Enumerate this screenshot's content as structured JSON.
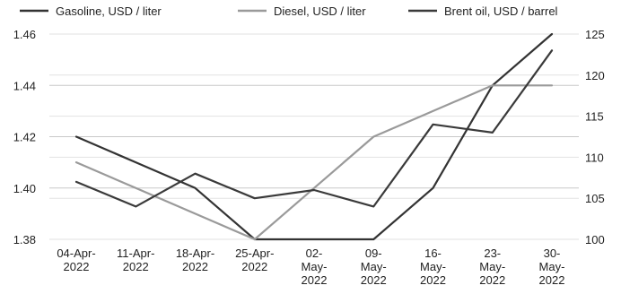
{
  "chart_data": {
    "type": "line",
    "categories": [
      [
        "04-Apr-",
        "2022"
      ],
      [
        "11-Apr-",
        "2022"
      ],
      [
        "18-Apr-",
        "2022"
      ],
      [
        "25-Apr-",
        "2022"
      ],
      [
        "02-",
        "May-",
        "2022"
      ],
      [
        "09-",
        "May-",
        "2022"
      ],
      [
        "16-",
        "May-",
        "2022"
      ],
      [
        "23-",
        "May-",
        "2022"
      ],
      [
        "30-",
        "May-",
        "2022"
      ]
    ],
    "series": [
      {
        "name": "Gasoline, USD / liter",
        "axis": "left",
        "color": "#333333",
        "values": [
          1.42,
          1.41,
          1.4,
          1.38,
          1.38,
          1.38,
          1.4,
          1.44,
          1.46
        ]
      },
      {
        "name": "Diesel, USD / liter",
        "axis": "left",
        "color": "#9a9a9a",
        "values": [
          1.41,
          1.4,
          1.39,
          1.38,
          1.4,
          1.42,
          1.43,
          1.44,
          1.44
        ]
      },
      {
        "name": "Brent oil, USD / barrel",
        "axis": "right",
        "color": "#3a3a3a",
        "values": [
          107,
          104,
          108,
          105,
          106,
          104,
          114,
          113,
          123
        ]
      }
    ],
    "y_left": {
      "ylim": [
        1.38,
        1.46
      ],
      "ticks": [
        "1.38",
        "1.40",
        "1.42",
        "1.44",
        "1.46"
      ],
      "tick_values": [
        1.38,
        1.4,
        1.42,
        1.44,
        1.46
      ]
    },
    "y_right": {
      "ylim": [
        100,
        125
      ],
      "ticks": [
        "100",
        "105",
        "110",
        "115",
        "120",
        "125"
      ],
      "tick_values": [
        100,
        105,
        110,
        115,
        120,
        125
      ]
    },
    "grid": true,
    "legend_position": "top",
    "title": "",
    "xlabel": "",
    "ylabel": ""
  }
}
